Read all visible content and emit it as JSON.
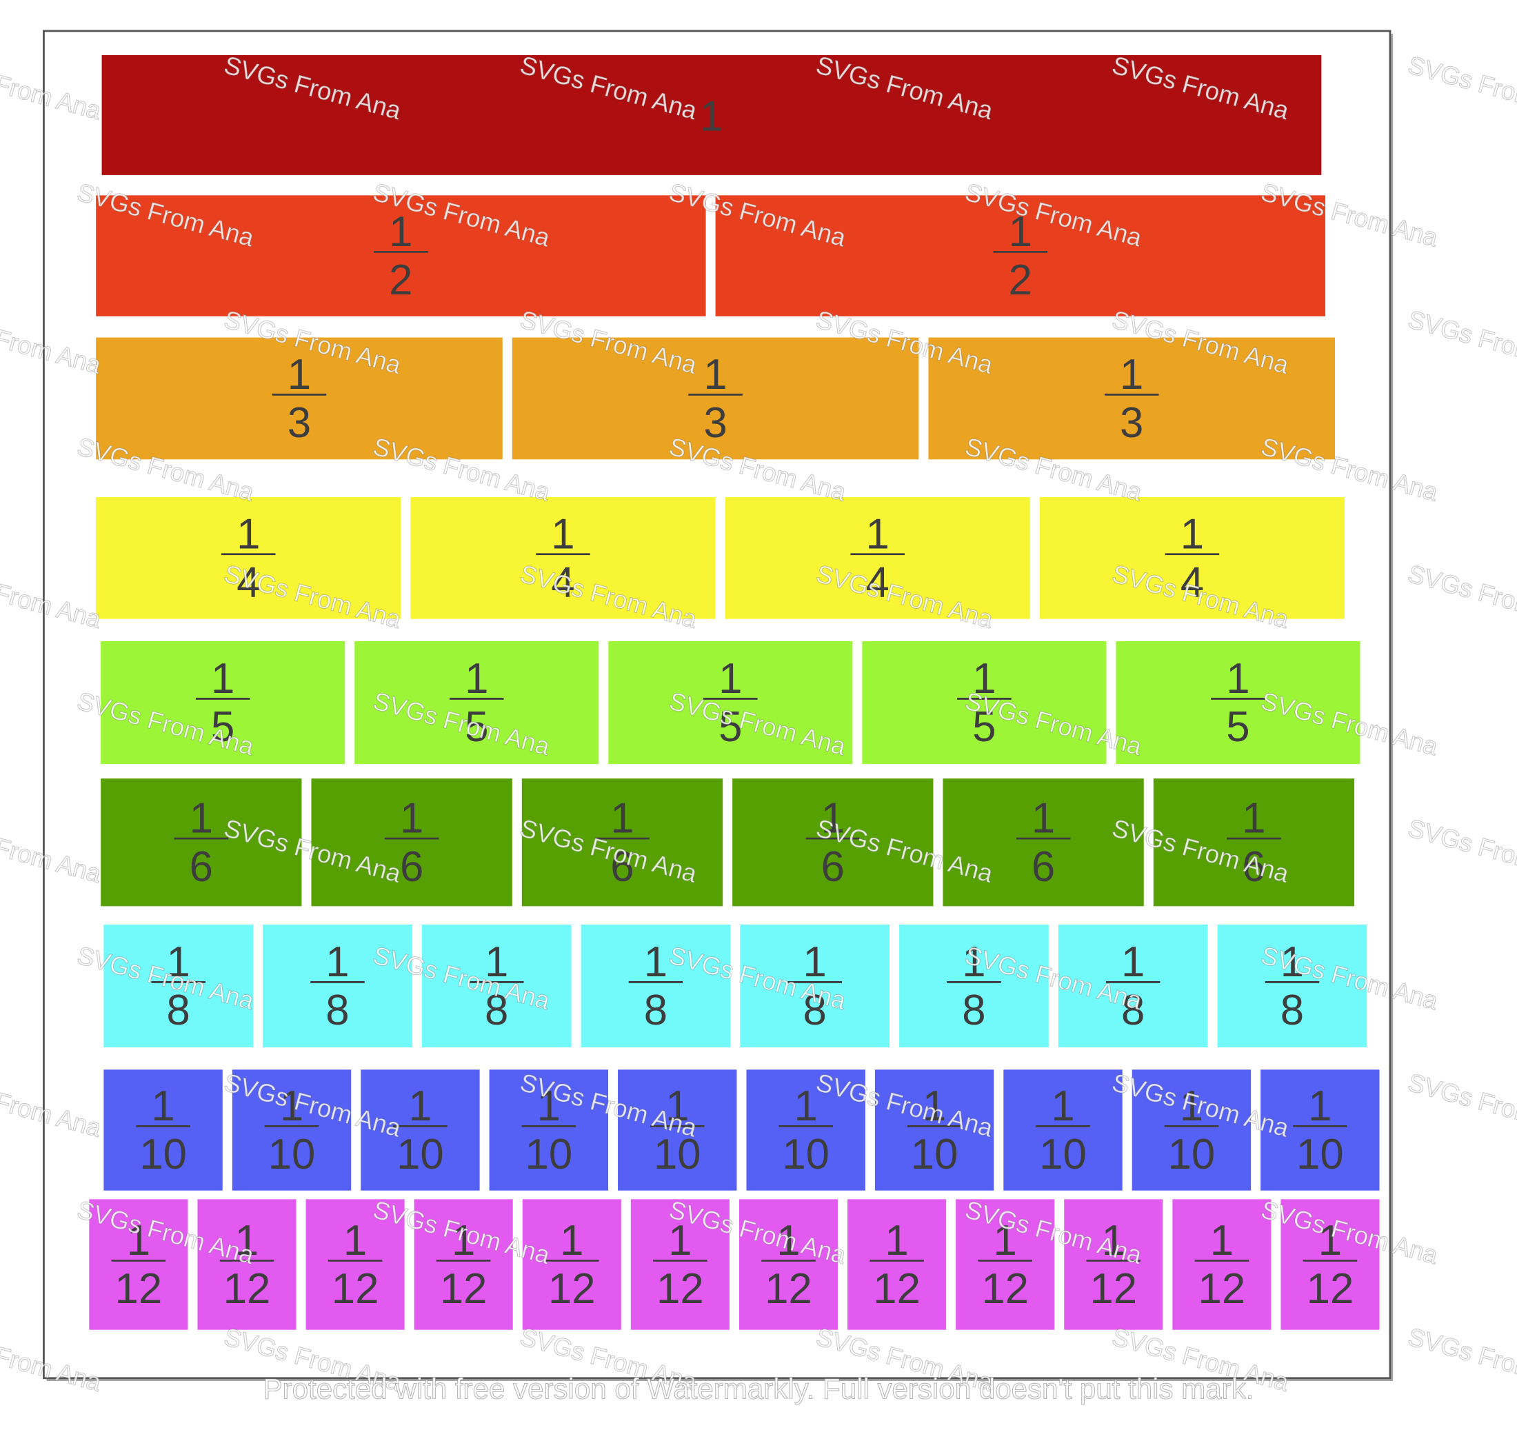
{
  "rows": [
    {
      "color": "#ad0f10",
      "tiles": [
        {
          "numerator": "1"
        }
      ]
    },
    {
      "color": "#e8401f",
      "tiles": [
        {
          "numerator": "1",
          "denominator": "2"
        },
        {
          "numerator": "1",
          "denominator": "2"
        }
      ]
    },
    {
      "color": "#eba322",
      "tiles": [
        {
          "numerator": "1",
          "denominator": "3"
        },
        {
          "numerator": "1",
          "denominator": "3"
        },
        {
          "numerator": "1",
          "denominator": "3"
        }
      ]
    },
    {
      "color": "#f8f534",
      "tiles": [
        {
          "numerator": "1",
          "denominator": "4"
        },
        {
          "numerator": "1",
          "denominator": "4"
        },
        {
          "numerator": "1",
          "denominator": "4"
        },
        {
          "numerator": "1",
          "denominator": "4"
        }
      ]
    },
    {
      "color": "#9cf536",
      "tiles": [
        {
          "numerator": "1",
          "denominator": "5"
        },
        {
          "numerator": "1",
          "denominator": "5"
        },
        {
          "numerator": "1",
          "denominator": "5"
        },
        {
          "numerator": "1",
          "denominator": "5"
        },
        {
          "numerator": "1",
          "denominator": "5"
        }
      ]
    },
    {
      "color": "#57a004",
      "tiles": [
        {
          "numerator": "1",
          "denominator": "6"
        },
        {
          "numerator": "1",
          "denominator": "6"
        },
        {
          "numerator": "1",
          "denominator": "6"
        },
        {
          "numerator": "1",
          "denominator": "6"
        },
        {
          "numerator": "1",
          "denominator": "6"
        },
        {
          "numerator": "1",
          "denominator": "6"
        }
      ]
    },
    {
      "color": "#72fafa",
      "tiles": [
        {
          "numerator": "1",
          "denominator": "8"
        },
        {
          "numerator": "1",
          "denominator": "8"
        },
        {
          "numerator": "1",
          "denominator": "8"
        },
        {
          "numerator": "1",
          "denominator": "8"
        },
        {
          "numerator": "1",
          "denominator": "8"
        },
        {
          "numerator": "1",
          "denominator": "8"
        },
        {
          "numerator": "1",
          "denominator": "8"
        },
        {
          "numerator": "1",
          "denominator": "8"
        }
      ]
    },
    {
      "color": "#5560f4",
      "tiles": [
        {
          "numerator": "1",
          "denominator": "10"
        },
        {
          "numerator": "1",
          "denominator": "10"
        },
        {
          "numerator": "1",
          "denominator": "10"
        },
        {
          "numerator": "1",
          "denominator": "10"
        },
        {
          "numerator": "1",
          "denominator": "10"
        },
        {
          "numerator": "1",
          "denominator": "10"
        },
        {
          "numerator": "1",
          "denominator": "10"
        },
        {
          "numerator": "1",
          "denominator": "10"
        },
        {
          "numerator": "1",
          "denominator": "10"
        },
        {
          "numerator": "1",
          "denominator": "10"
        }
      ]
    },
    {
      "color": "#e25af0",
      "tiles": [
        {
          "numerator": "1",
          "denominator": "12"
        },
        {
          "numerator": "1",
          "denominator": "12"
        },
        {
          "numerator": "1",
          "denominator": "12"
        },
        {
          "numerator": "1",
          "denominator": "12"
        },
        {
          "numerator": "1",
          "denominator": "12"
        },
        {
          "numerator": "1",
          "denominator": "12"
        },
        {
          "numerator": "1",
          "denominator": "12"
        },
        {
          "numerator": "1",
          "denominator": "12"
        },
        {
          "numerator": "1",
          "denominator": "12"
        },
        {
          "numerator": "1",
          "denominator": "12"
        },
        {
          "numerator": "1",
          "denominator": "12"
        },
        {
          "numerator": "1",
          "denominator": "12"
        }
      ]
    }
  ],
  "watermark": "SVGs From Ana",
  "footer": "Protected with free version of Watermarkly. Full version doesn't put this mark."
}
